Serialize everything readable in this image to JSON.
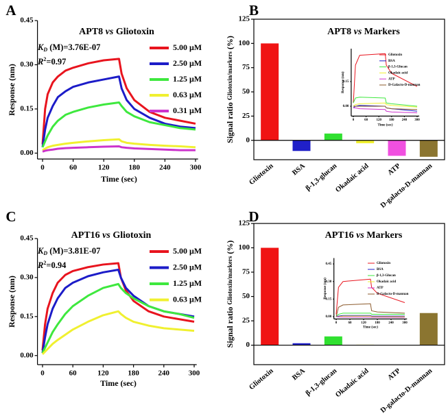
{
  "chart_data": [
    {
      "panel": "A",
      "type": "line",
      "title": [
        "APT8",
        "vs",
        "Gliotoxin"
      ],
      "xlabel": "Time (sec)",
      "ylabel": "Response (nm)",
      "annotations": [
        {
          "symbol": "K",
          "sub": "D",
          "text": " (M)=3.76E-07"
        },
        {
          "symbol": "R",
          "sup": "2",
          "text": "=0.97"
        }
      ],
      "x": [
        0,
        5,
        10,
        20,
        30,
        45,
        60,
        90,
        120,
        150,
        155,
        165,
        180,
        210,
        240,
        270,
        300
      ],
      "series": [
        {
          "name": "5.00 μM",
          "color": "#e8141e",
          "values": [
            0.03,
            0.15,
            0.2,
            0.24,
            0.26,
            0.28,
            0.29,
            0.305,
            0.315,
            0.32,
            0.27,
            0.22,
            0.18,
            0.14,
            0.12,
            0.11,
            0.1
          ]
        },
        {
          "name": "2.50 μM",
          "color": "#1c1cc8",
          "values": [
            0.02,
            0.08,
            0.12,
            0.16,
            0.19,
            0.21,
            0.225,
            0.24,
            0.25,
            0.26,
            0.22,
            0.18,
            0.15,
            0.12,
            0.1,
            0.09,
            0.085
          ]
        },
        {
          "name": "1.25 μM",
          "color": "#3ee83e",
          "values": [
            0.02,
            0.04,
            0.06,
            0.09,
            0.11,
            0.13,
            0.14,
            0.155,
            0.165,
            0.172,
            0.16,
            0.14,
            0.125,
            0.105,
            0.095,
            0.085,
            0.08
          ]
        },
        {
          "name": "0.63 μM",
          "color": "#f0f030",
          "values": [
            0.01,
            0.015,
            0.02,
            0.025,
            0.028,
            0.032,
            0.035,
            0.04,
            0.044,
            0.047,
            0.04,
            0.035,
            0.032,
            0.028,
            0.025,
            0.023,
            0.02
          ]
        },
        {
          "name": "0.31 μM",
          "color": "#cc33cc",
          "values": [
            0.005,
            0.008,
            0.01,
            0.012,
            0.015,
            0.017,
            0.018,
            0.02,
            0.022,
            0.023,
            0.02,
            0.018,
            0.016,
            0.014,
            0.012,
            0.01,
            0.01
          ]
        }
      ],
      "xlim": [
        -10,
        305
      ],
      "ylim": [
        -0.02,
        0.45
      ],
      "xticks": [
        0,
        60,
        120,
        180,
        240,
        300
      ],
      "yticks": [
        {
          "value": 0,
          "label": "0.00"
        },
        {
          "value": 0.15,
          "label": "0.15"
        },
        {
          "value": 0.3,
          "label": "0.30"
        },
        {
          "value": 0.45,
          "label": "0.45"
        }
      ],
      "legend": "upper right"
    },
    {
      "panel": "B",
      "type": "bar",
      "title": [
        "APT8",
        "vs",
        "Markers"
      ],
      "ylabel": [
        "Signal ratio",
        "Gliotoxin/markers",
        "(%)"
      ],
      "categories": [
        "Gliotoxin",
        "BSA",
        "β-1,3-glucan",
        "Okadaic acid",
        "ATP",
        "D-galacto-D-mannan"
      ],
      "values": [
        100,
        -11,
        7,
        -3,
        -16,
        -17
      ],
      "colors": [
        "#f01414",
        "#2020c8",
        "#30e030",
        "#f0f030",
        "#f050e0",
        "#8b7530"
      ],
      "ylim": [
        -20,
        125
      ],
      "yticks": [
        0,
        25,
        50,
        75,
        100,
        125
      ],
      "inset": {
        "type": "line",
        "xlabel": "Time (sec)",
        "ylabel": "Response (nm)",
        "x": [
          0,
          10,
          30,
          150,
          155,
          180,
          300
        ],
        "series": [
          {
            "name": "Gliotoxin",
            "color": "#e8141e",
            "values": [
              0.02,
              0.25,
              0.31,
              0.32,
              0.25,
              0.2,
              0.12
            ]
          },
          {
            "name": "BSA",
            "color": "#1c1cc8",
            "values": [
              -0.01,
              0,
              0.005,
              0,
              -0.01,
              -0.015,
              -0.03
            ]
          },
          {
            "name": "β-1,3-Glucan",
            "color": "#3ee83e",
            "values": [
              0.02,
              0.05,
              0.055,
              0.05,
              0.02,
              0.015,
              0
            ]
          },
          {
            "name": "Okadaic acid",
            "color": "#f0f030",
            "values": [
              0,
              0.01,
              0.015,
              0.02,
              0.01,
              0.005,
              -0.005
            ]
          },
          {
            "name": "ATP",
            "color": "#cc33cc",
            "values": [
              -0.01,
              -0.01,
              -0.015,
              -0.02,
              -0.03,
              -0.035,
              -0.04
            ]
          },
          {
            "name": "D-Galacto-D-mannan",
            "color": "#8b5a2b",
            "values": [
              0,
              0,
              0,
              0,
              -0.01,
              -0.015,
              -0.02
            ]
          }
        ],
        "xlim": [
          -10,
          310
        ],
        "ylim": [
          -0.06,
          0.35
        ],
        "xticks": [
          0,
          60,
          120,
          180,
          240,
          300
        ],
        "yticks": [
          {
            "value": 0,
            "label": "0.00"
          },
          {
            "value": 0.15,
            "label": "0.15"
          }
        ],
        "legend": "upper right"
      }
    },
    {
      "panel": "C",
      "type": "line",
      "title": [
        "APT16",
        "vs",
        "Gliotoxin"
      ],
      "xlabel": "Time (sec)",
      "ylabel": "Response (nm)",
      "annotations": [
        {
          "symbol": "K",
          "sub": "D",
          "text": " (M)=3.81E-07"
        },
        {
          "symbol": "R",
          "sup": "2",
          "text": "=0.94"
        }
      ],
      "x": [
        0,
        5,
        10,
        20,
        30,
        45,
        60,
        90,
        120,
        150,
        155,
        165,
        180,
        210,
        240,
        270,
        300
      ],
      "series": [
        {
          "name": "5.00 μM",
          "color": "#e8141e",
          "values": [
            0.02,
            0.12,
            0.18,
            0.24,
            0.28,
            0.31,
            0.325,
            0.34,
            0.35,
            0.355,
            0.3,
            0.25,
            0.21,
            0.17,
            0.15,
            0.14,
            0.13
          ]
        },
        {
          "name": "2.50 μM",
          "color": "#1c1cc8",
          "values": [
            0.01,
            0.07,
            0.12,
            0.18,
            0.22,
            0.26,
            0.28,
            0.305,
            0.32,
            0.33,
            0.3,
            0.26,
            0.23,
            0.19,
            0.17,
            0.16,
            0.15
          ]
        },
        {
          "name": "1.25 μM",
          "color": "#3ee83e",
          "values": [
            0.01,
            0.03,
            0.05,
            0.09,
            0.12,
            0.16,
            0.19,
            0.23,
            0.26,
            0.275,
            0.26,
            0.24,
            0.22,
            0.19,
            0.17,
            0.16,
            0.145
          ]
        },
        {
          "name": "0.63 μM",
          "color": "#f0f030",
          "values": [
            0.005,
            0.015,
            0.025,
            0.045,
            0.06,
            0.08,
            0.1,
            0.13,
            0.155,
            0.17,
            0.16,
            0.145,
            0.13,
            0.115,
            0.105,
            0.1,
            0.095
          ]
        }
      ],
      "xlim": [
        -10,
        305
      ],
      "ylim": [
        -0.035,
        0.45
      ],
      "xticks": [
        0,
        60,
        120,
        180,
        240,
        300
      ],
      "yticks": [
        {
          "value": 0,
          "label": "0.00"
        },
        {
          "value": 0.15,
          "label": "0.15"
        },
        {
          "value": 0.3,
          "label": "0.30"
        },
        {
          "value": 0.45,
          "label": "0.45"
        }
      ],
      "legend": "upper right"
    },
    {
      "panel": "D",
      "type": "bar",
      "title": [
        "APT16",
        "vs",
        "Markers"
      ],
      "ylabel": [
        "Signal ratio",
        "Gliotoxin/markers",
        "(%)"
      ],
      "categories": [
        "Gliotoxin",
        "BSA",
        "β-1,3-glucan",
        "Okadaic acid",
        "ATP",
        "D-galacto-D-mannan"
      ],
      "values": [
        100,
        2,
        9,
        0.5,
        0.3,
        33
      ],
      "colors": [
        "#f01414",
        "#2020c8",
        "#30e030",
        "#f0f030",
        "#f050e0",
        "#8b7530"
      ],
      "ylim": [
        -20,
        125
      ],
      "yticks": [
        0,
        25,
        50,
        75,
        100,
        125
      ],
      "inset": {
        "type": "line",
        "xlabel": "Time (sec)",
        "ylabel": "Response (nm)",
        "x": [
          0,
          10,
          30,
          150,
          155,
          180,
          300
        ],
        "series": [
          {
            "name": "Gliotoxin",
            "color": "#e8141e",
            "values": [
              0.02,
              0.25,
              0.3,
              0.32,
              0.25,
              0.2,
              0.12
            ]
          },
          {
            "name": "BSA",
            "color": "#1c1cc8",
            "values": [
              0,
              0.005,
              0.01,
              0.01,
              0.005,
              0.005,
              0.005
            ]
          },
          {
            "name": "β-1,3-Glucan",
            "color": "#3ee83e",
            "values": [
              0,
              0.02,
              0.03,
              0.03,
              0.02,
              0.02,
              0.02
            ]
          },
          {
            "name": "Okadaic acid",
            "color": "#f0f030",
            "values": [
              0,
              0,
              0.005,
              0.005,
              0,
              0,
              0
            ]
          },
          {
            "name": "ATP",
            "color": "#cc33cc",
            "values": [
              0,
              -0.002,
              -0.003,
              -0.004,
              -0.005,
              -0.005,
              -0.006
            ]
          },
          {
            "name": "D-Galacto-D-mannan",
            "color": "#8b5a2b",
            "values": [
              0,
              0.08,
              0.1,
              0.11,
              0.05,
              0.04,
              0.03
            ]
          }
        ],
        "xlim": [
          -10,
          310
        ],
        "ylim": [
          -0.02,
          0.5
        ],
        "xticks": [
          0,
          60,
          120,
          180,
          240,
          300
        ],
        "yticks": [
          {
            "value": 0,
            "label": "0.00"
          },
          {
            "value": 0.15,
            "label": "0.15"
          },
          {
            "value": 0.3,
            "label": "0.30"
          },
          {
            "value": 0.45,
            "label": "0.45"
          }
        ],
        "legend": "upper right"
      }
    }
  ]
}
